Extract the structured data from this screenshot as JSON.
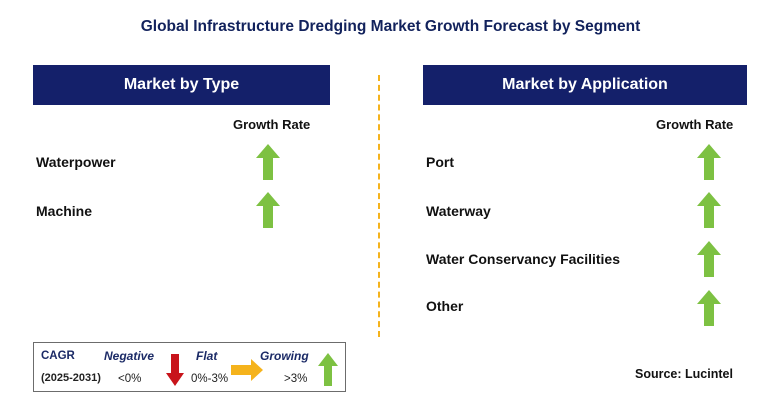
{
  "title": "Global Infrastructure Dredging Market Growth Forecast by Segment",
  "left_panel": {
    "header": "Market by Type",
    "column_label": "Growth Rate",
    "rows": [
      {
        "label": "Waterpower",
        "trend": "growing"
      },
      {
        "label": "Machine",
        "trend": "growing"
      }
    ]
  },
  "right_panel": {
    "header": "Market by Application",
    "column_label": "Growth Rate",
    "rows": [
      {
        "label": "Port",
        "trend": "growing"
      },
      {
        "label": "Waterway",
        "trend": "growing"
      },
      {
        "label": "Water Conservancy Facilities",
        "trend": "growing"
      },
      {
        "label": "Other",
        "trend": "growing"
      }
    ]
  },
  "legend": {
    "cagr_label": "CAGR",
    "period": "(2025-2031)",
    "negative": {
      "title": "Negative",
      "range": "<0%",
      "icon": "down-arrow-red"
    },
    "flat": {
      "title": "Flat",
      "range": "0%-3%",
      "icon": "right-arrow-yellow"
    },
    "growing": {
      "title": "Growing",
      "range": ">3%",
      "icon": "up-arrow-green"
    }
  },
  "source": "Source: Lucintel",
  "colors": {
    "header_bg": "#14206a",
    "title_text": "#12225c",
    "divider": "#f5b31c",
    "arrow_green": "#7dc142",
    "arrow_red": "#c8141b",
    "arrow_yellow": "#f5b31c"
  }
}
